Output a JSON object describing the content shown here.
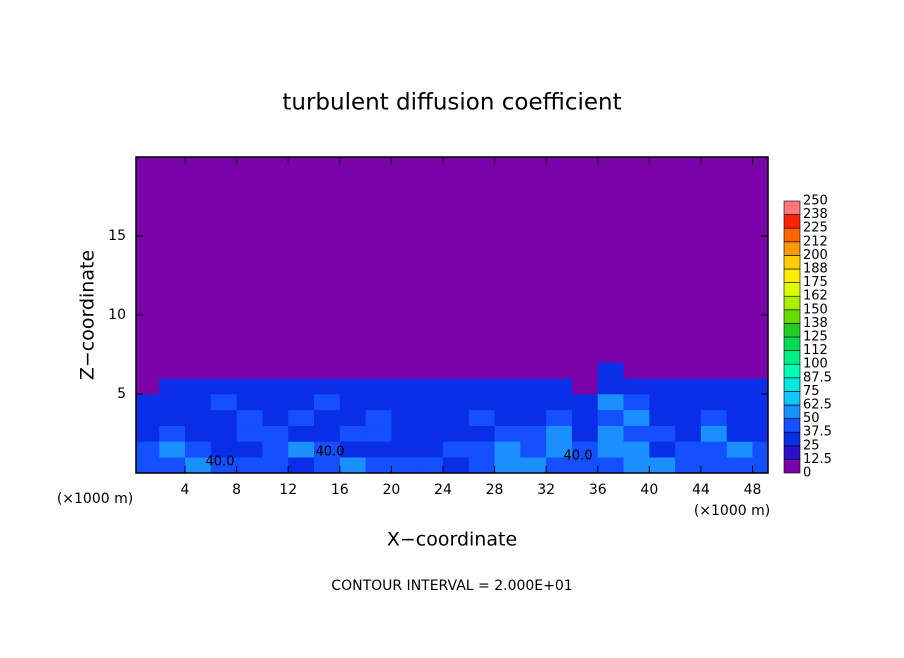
{
  "chart_data": {
    "type": "contour",
    "title": "turbulent diffusion coefficient",
    "xlabel": "X−coordinate",
    "ylabel": "Z−coordinate",
    "xunit": "(×1000 m)",
    "footer": "CONTOUR INTERVAL = 2.000E+01",
    "xlim": [
      0.2,
      49.2
    ],
    "ylim": [
      0,
      20
    ],
    "xticks": [
      4,
      8,
      12,
      16,
      20,
      24,
      28,
      32,
      36,
      40,
      44,
      48
    ],
    "yticks": [
      5,
      10,
      15
    ],
    "contour_labels": [
      "40.0",
      "40.0",
      "40.0"
    ],
    "levels": [
      0,
      12.5,
      25,
      37.5,
      50,
      62.5,
      75,
      87.5,
      100,
      {
        "value": 112.5,
        "label": "112"
      },
      125,
      {
        "value": 137.5,
        "label": "138"
      },
      150,
      {
        "value": 162.5,
        "label": "162"
      },
      175,
      {
        "value": 187.5,
        "label": "188"
      },
      200,
      {
        "value": 212.5,
        "label": "212"
      },
      225,
      {
        "value": 237.5,
        "label": "238"
      },
      250
    ],
    "level_colors": [
      "#7a00a8",
      "#2a10c8",
      "#0a2ee8",
      "#1450ff",
      "#1a90ff",
      "#10c8ff",
      "#00e8e0",
      "#00ffb4",
      "#00ee88",
      "#00dd55",
      "#22cc22",
      "#66dd00",
      "#aaee00",
      "#ddff00",
      "#ffee00",
      "#ffcc00",
      "#ff9900",
      "#ff6600",
      "#ff2200",
      "#ff7777"
    ],
    "field": {
      "x": [
        1,
        3,
        5,
        7,
        9,
        11,
        13,
        15,
        17,
        19,
        21,
        23,
        25,
        27,
        29,
        31,
        33,
        35,
        37,
        39,
        41,
        43,
        45,
        47,
        49
      ],
      "z": [
        0.5,
        1.5,
        2.5,
        3.5,
        4.5,
        5.5,
        6.5
      ],
      "values": [
        [
          40,
          45,
          50,
          45,
          40,
          45,
          35,
          40,
          50,
          45,
          40,
          45,
          35,
          40,
          50,
          55,
          40,
          45,
          45,
          55,
          50,
          40,
          45,
          40,
          40
        ],
        [
          45,
          50,
          40,
          35,
          30,
          45,
          50,
          40,
          35,
          30,
          30,
          35,
          40,
          45,
          50,
          45,
          55,
          40,
          60,
          50,
          35,
          40,
          45,
          50,
          40
        ],
        [
          30,
          40,
          35,
          30,
          45,
          40,
          35,
          30,
          45,
          40,
          30,
          35,
          30,
          35,
          45,
          40,
          50,
          30,
          55,
          45,
          40,
          35,
          50,
          30,
          35
        ],
        [
          30,
          35,
          30,
          35,
          40,
          30,
          45,
          35,
          30,
          40,
          35,
          30,
          30,
          45,
          35,
          30,
          40,
          35,
          45,
          50,
          35,
          30,
          40,
          35,
          30
        ],
        [
          30,
          30,
          30,
          40,
          30,
          35,
          30,
          40,
          30,
          35,
          30,
          30,
          35,
          30,
          30,
          35,
          30,
          30,
          50,
          45,
          30,
          35,
          30,
          30,
          30
        ],
        [
          10,
          30,
          30,
          30,
          30,
          30,
          30,
          30,
          30,
          30,
          30,
          30,
          30,
          30,
          30,
          30,
          30,
          10,
          30,
          30,
          30,
          30,
          30,
          30,
          30
        ],
        [
          5,
          5,
          5,
          5,
          10,
          5,
          5,
          5,
          5,
          5,
          5,
          5,
          5,
          5,
          10,
          5,
          5,
          5,
          30,
          5,
          5,
          5,
          5,
          5,
          10
        ]
      ]
    }
  }
}
